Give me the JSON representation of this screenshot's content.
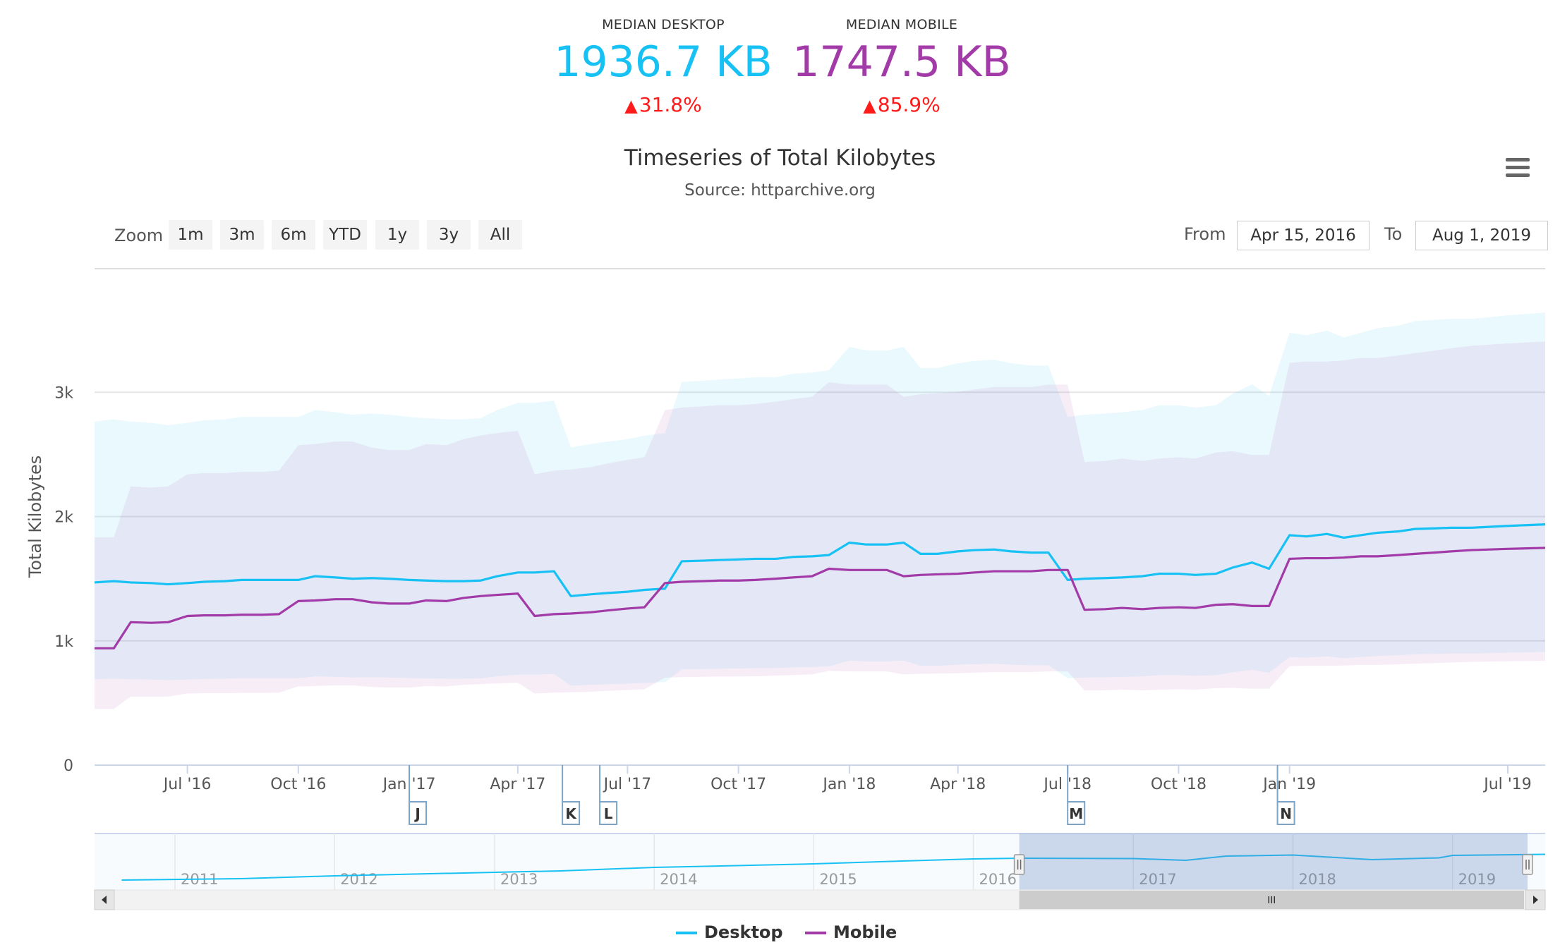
{
  "stats": {
    "desktop": {
      "label": "MEDIAN DESKTOP",
      "value": "1936.7 KB",
      "change": "31.8%",
      "color": "#17c1f4"
    },
    "mobile": {
      "label": "MEDIAN MOBILE",
      "value": "1747.5 KB",
      "change": "85.9%",
      "color": "#a23aa8"
    },
    "change_color": "#ff0000"
  },
  "toolbar": {
    "zoom_label": "Zoom",
    "zoom_buttons": [
      "1m",
      "3m",
      "6m",
      "YTD",
      "1y",
      "3y",
      "All"
    ],
    "from_label": "From",
    "from_value": "Apr 15, 2016",
    "to_label": "To",
    "to_value": "Aug 1, 2019"
  },
  "menu_icon": "hamburger-menu-icon",
  "chart_data": {
    "type": "line",
    "title": "Timeseries of Total Kilobytes",
    "subtitle": "Source: httparchive.org",
    "ylabel": "Total Kilobytes",
    "ylim": [
      0,
      4000
    ],
    "yticks": [
      0,
      1000,
      2000,
      3000
    ],
    "ytick_labels": [
      "0",
      "1k",
      "2k",
      "3k"
    ],
    "xlim": [
      "2016-04-15",
      "2019-08-01"
    ],
    "xticks": [
      {
        "date": "2016-07-01",
        "label": "Jul '16"
      },
      {
        "date": "2016-10-01",
        "label": "Oct '16"
      },
      {
        "date": "2017-01-01",
        "label": "Jan '17"
      },
      {
        "date": "2017-04-01",
        "label": "Apr '17"
      },
      {
        "date": "2017-07-01",
        "label": "Jul '17"
      },
      {
        "date": "2017-10-01",
        "label": "Oct '17"
      },
      {
        "date": "2018-01-01",
        "label": "Jan '18"
      },
      {
        "date": "2018-04-01",
        "label": "Apr '18"
      },
      {
        "date": "2018-07-01",
        "label": "Jul '18"
      },
      {
        "date": "2018-10-01",
        "label": "Oct '18"
      },
      {
        "date": "2019-01-01",
        "label": "Jan '19"
      },
      {
        "date": "2019-07-01",
        "label": "Jul '19"
      }
    ],
    "grid": true,
    "legend_position": "bottom-center",
    "series": [
      {
        "name": "Desktop",
        "color": "#17c1f4",
        "x": [
          "2016-04-15",
          "2016-05-01",
          "2016-05-15",
          "2016-06-01",
          "2016-06-15",
          "2016-07-01",
          "2016-07-15",
          "2016-08-01",
          "2016-08-15",
          "2016-09-01",
          "2016-09-15",
          "2016-10-01",
          "2016-10-15",
          "2016-11-01",
          "2016-11-15",
          "2016-12-01",
          "2016-12-15",
          "2017-01-01",
          "2017-01-15",
          "2017-02-01",
          "2017-02-15",
          "2017-03-01",
          "2017-03-15",
          "2017-04-01",
          "2017-04-15",
          "2017-05-01",
          "2017-05-15",
          "2017-06-01",
          "2017-06-15",
          "2017-07-01",
          "2017-07-15",
          "2017-08-01",
          "2017-08-15",
          "2017-09-01",
          "2017-09-15",
          "2017-10-01",
          "2017-10-15",
          "2017-11-01",
          "2017-11-15",
          "2017-12-01",
          "2017-12-15",
          "2018-01-01",
          "2018-01-15",
          "2018-02-01",
          "2018-02-15",
          "2018-03-01",
          "2018-03-15",
          "2018-04-01",
          "2018-04-15",
          "2018-05-01",
          "2018-05-15",
          "2018-06-01",
          "2018-06-15",
          "2018-07-01",
          "2018-07-15",
          "2018-08-01",
          "2018-08-15",
          "2018-09-01",
          "2018-09-15",
          "2018-10-01",
          "2018-10-15",
          "2018-11-01",
          "2018-11-15",
          "2018-12-01",
          "2018-12-15",
          "2019-01-01",
          "2019-01-15",
          "2019-02-01",
          "2019-02-15",
          "2019-03-01",
          "2019-03-15",
          "2019-04-01",
          "2019-04-15",
          "2019-05-01",
          "2019-05-15",
          "2019-06-01",
          "2019-07-01",
          "2019-08-01"
        ],
        "values": [
          1470,
          1480,
          1470,
          1465,
          1455,
          1465,
          1475,
          1480,
          1490,
          1490,
          1490,
          1490,
          1520,
          1510,
          1500,
          1505,
          1500,
          1490,
          1485,
          1480,
          1480,
          1485,
          1520,
          1550,
          1550,
          1560,
          1360,
          1375,
          1385,
          1395,
          1410,
          1420,
          1640,
          1645,
          1650,
          1655,
          1660,
          1660,
          1675,
          1680,
          1690,
          1790,
          1775,
          1775,
          1790,
          1700,
          1700,
          1720,
          1730,
          1735,
          1720,
          1710,
          1710,
          1490,
          1500,
          1505,
          1510,
          1520,
          1540,
          1540,
          1530,
          1540,
          1590,
          1630,
          1580,
          1850,
          1840,
          1860,
          1830,
          1850,
          1870,
          1880,
          1900,
          1905,
          1910,
          1910,
          1925,
          1937
        ]
      },
      {
        "name": "Mobile",
        "color": "#a23aa8",
        "x": [
          "2016-04-15",
          "2016-05-01",
          "2016-05-15",
          "2016-06-01",
          "2016-06-15",
          "2016-07-01",
          "2016-07-15",
          "2016-08-01",
          "2016-08-15",
          "2016-09-01",
          "2016-09-15",
          "2016-10-01",
          "2016-10-15",
          "2016-11-01",
          "2016-11-15",
          "2016-12-01",
          "2016-12-15",
          "2017-01-01",
          "2017-01-15",
          "2017-02-01",
          "2017-02-15",
          "2017-03-01",
          "2017-03-15",
          "2017-04-01",
          "2017-04-15",
          "2017-05-01",
          "2017-05-15",
          "2017-06-01",
          "2017-06-15",
          "2017-07-01",
          "2017-07-15",
          "2017-08-01",
          "2017-08-15",
          "2017-09-01",
          "2017-09-15",
          "2017-10-01",
          "2017-10-15",
          "2017-11-01",
          "2017-11-15",
          "2017-12-01",
          "2017-12-15",
          "2018-01-01",
          "2018-01-15",
          "2018-02-01",
          "2018-02-15",
          "2018-03-01",
          "2018-03-15",
          "2018-04-01",
          "2018-04-15",
          "2018-05-01",
          "2018-05-15",
          "2018-06-01",
          "2018-06-15",
          "2018-07-01",
          "2018-07-15",
          "2018-08-01",
          "2018-08-15",
          "2018-09-01",
          "2018-09-15",
          "2018-10-01",
          "2018-10-15",
          "2018-11-01",
          "2018-11-15",
          "2018-12-01",
          "2018-12-15",
          "2019-01-01",
          "2019-01-15",
          "2019-02-01",
          "2019-02-15",
          "2019-03-01",
          "2019-03-15",
          "2019-04-01",
          "2019-04-15",
          "2019-05-01",
          "2019-05-15",
          "2019-06-01",
          "2019-07-01",
          "2019-08-01"
        ],
        "values": [
          940,
          940,
          1150,
          1145,
          1150,
          1200,
          1205,
          1205,
          1210,
          1210,
          1215,
          1320,
          1325,
          1335,
          1335,
          1310,
          1300,
          1300,
          1325,
          1320,
          1345,
          1360,
          1370,
          1380,
          1200,
          1215,
          1220,
          1230,
          1245,
          1260,
          1270,
          1465,
          1475,
          1480,
          1485,
          1485,
          1490,
          1500,
          1510,
          1520,
          1580,
          1570,
          1570,
          1570,
          1520,
          1530,
          1535,
          1540,
          1550,
          1560,
          1560,
          1560,
          1570,
          1570,
          1250,
          1255,
          1265,
          1255,
          1265,
          1270,
          1265,
          1290,
          1295,
          1280,
          1280,
          1660,
          1665,
          1665,
          1670,
          1680,
          1680,
          1690,
          1700,
          1710,
          1720,
          1730,
          1740,
          1748
        ]
      }
    ],
    "flags": [
      {
        "date": "2017-01-01",
        "label": "J"
      },
      {
        "date": "2017-05-08",
        "label": "K"
      },
      {
        "date": "2017-06-08",
        "label": "L"
      },
      {
        "date": "2018-07-01",
        "label": "M"
      },
      {
        "date": "2018-12-22",
        "label": "N"
      }
    ],
    "navigator": {
      "year_labels": [
        "2011",
        "2012",
        "2013",
        "2014",
        "2015",
        "2016",
        "2017",
        "2018",
        "2019"
      ]
    }
  }
}
